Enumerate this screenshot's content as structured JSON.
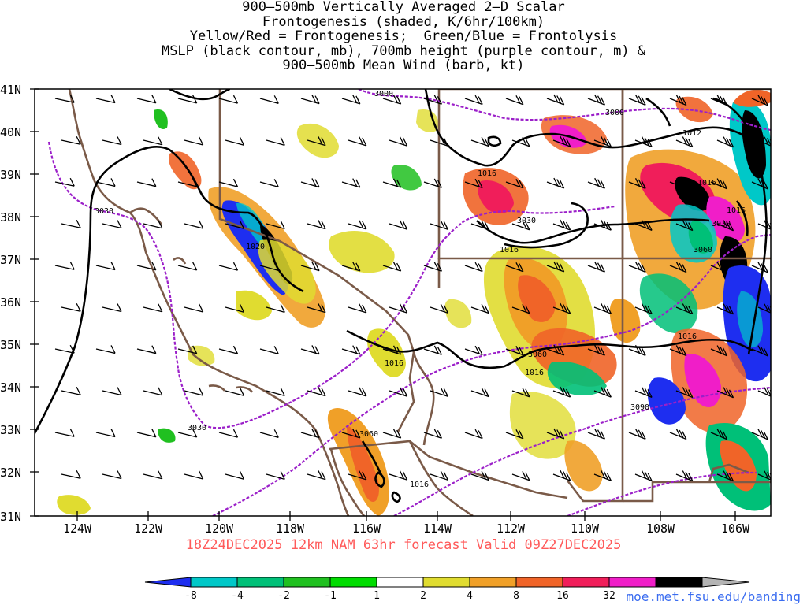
{
  "title": {
    "line1": "900–500mb Vertically Averaged 2–D Scalar",
    "line2": "Frontogenesis (shaded, K/6hr/100km)",
    "line3": "Yellow/Red = Frontogenesis;  Green/Blue = Frontolysis",
    "line4": "MSLP (black contour, mb), 700mb height (purple contour, m) &",
    "line5": "900–500mb Mean Wind (barb, kt)"
  },
  "axes": {
    "lat_labels": [
      "41N",
      "40N",
      "39N",
      "38N",
      "37N",
      "36N",
      "35N",
      "34N",
      "33N",
      "32N",
      "31N"
    ],
    "lon_labels": [
      "124W",
      "122W",
      "120W",
      "118W",
      "116W",
      "114W",
      "112W",
      "110W",
      "108W",
      "106W"
    ],
    "lat_range": [
      31,
      41
    ],
    "lon_range": [
      -125,
      -105
    ]
  },
  "contour_labels": {
    "mslp": [
      "1012",
      "1016",
      "1016",
      "1016",
      "1016",
      "1016",
      "1016",
      "1016",
      "1016",
      "1020"
    ],
    "height": [
      "3000",
      "3000",
      "3030",
      "3030",
      "3030",
      "3030",
      "3060",
      "3060",
      "3060",
      "3090"
    ]
  },
  "run_info": "18Z24DEC2025 12km NAM 63hr forecast Valid 09Z27DEC2025",
  "colorbar": {
    "labels": [
      "-8",
      "-4",
      "-2",
      "-1",
      "1",
      "2",
      "4",
      "8",
      "16",
      "32"
    ],
    "colors": [
      "#1e2ef0",
      "#00c8c8",
      "#00c078",
      "#20c020",
      "#00dc00",
      "#ffffff",
      "#e0dc30",
      "#f0a028",
      "#f06428",
      "#f01e5a",
      "#f01ec8",
      "#000000",
      "#b4b4b4"
    ]
  },
  "source": "moe.met.fsu.edu/banding",
  "colors": {
    "mslp": "#000000",
    "height": "#9b1fc9",
    "borders": "#7a5a48",
    "barbs": "#000000"
  }
}
